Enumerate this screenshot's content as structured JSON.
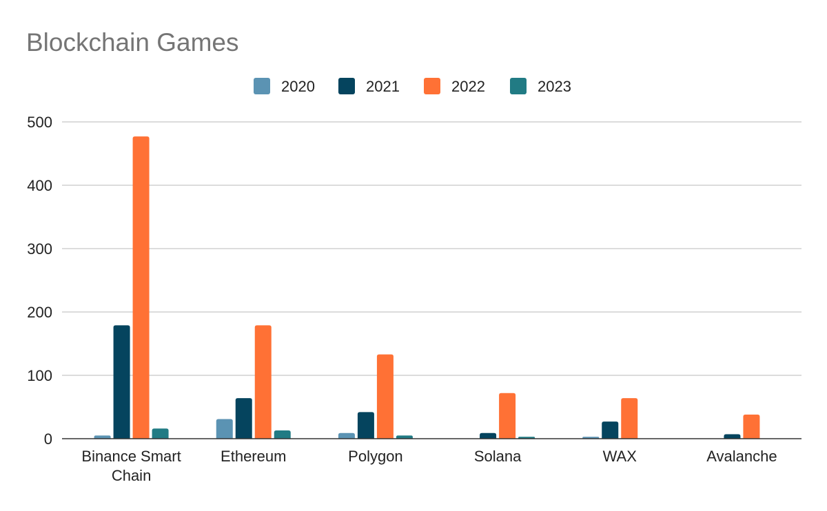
{
  "chart_data": {
    "type": "bar",
    "title": "Blockchain Games",
    "xlabel": "",
    "ylabel": "",
    "ylim": [
      0,
      500
    ],
    "yticks": [
      0,
      100,
      200,
      300,
      400,
      500
    ],
    "grid": true,
    "legend_position": "top-center",
    "categories": [
      [
        "Binance Smart",
        "Chain"
      ],
      [
        "Ethereum"
      ],
      [
        "Polygon"
      ],
      [
        "Solana"
      ],
      [
        "WAX"
      ],
      [
        "Avalanche"
      ]
    ],
    "series": [
      {
        "name": "2020",
        "color": "#5b93b3",
        "values": [
          5,
          31,
          9,
          0,
          3,
          0
        ]
      },
      {
        "name": "2021",
        "color": "#05445e",
        "values": [
          179,
          64,
          42,
          9,
          27,
          7
        ]
      },
      {
        "name": "2022",
        "color": "#ff7135",
        "values": [
          477,
          179,
          133,
          72,
          64,
          38
        ]
      },
      {
        "name": "2023",
        "color": "#217b84",
        "values": [
          16,
          13,
          5,
          3,
          0,
          0
        ]
      }
    ]
  }
}
